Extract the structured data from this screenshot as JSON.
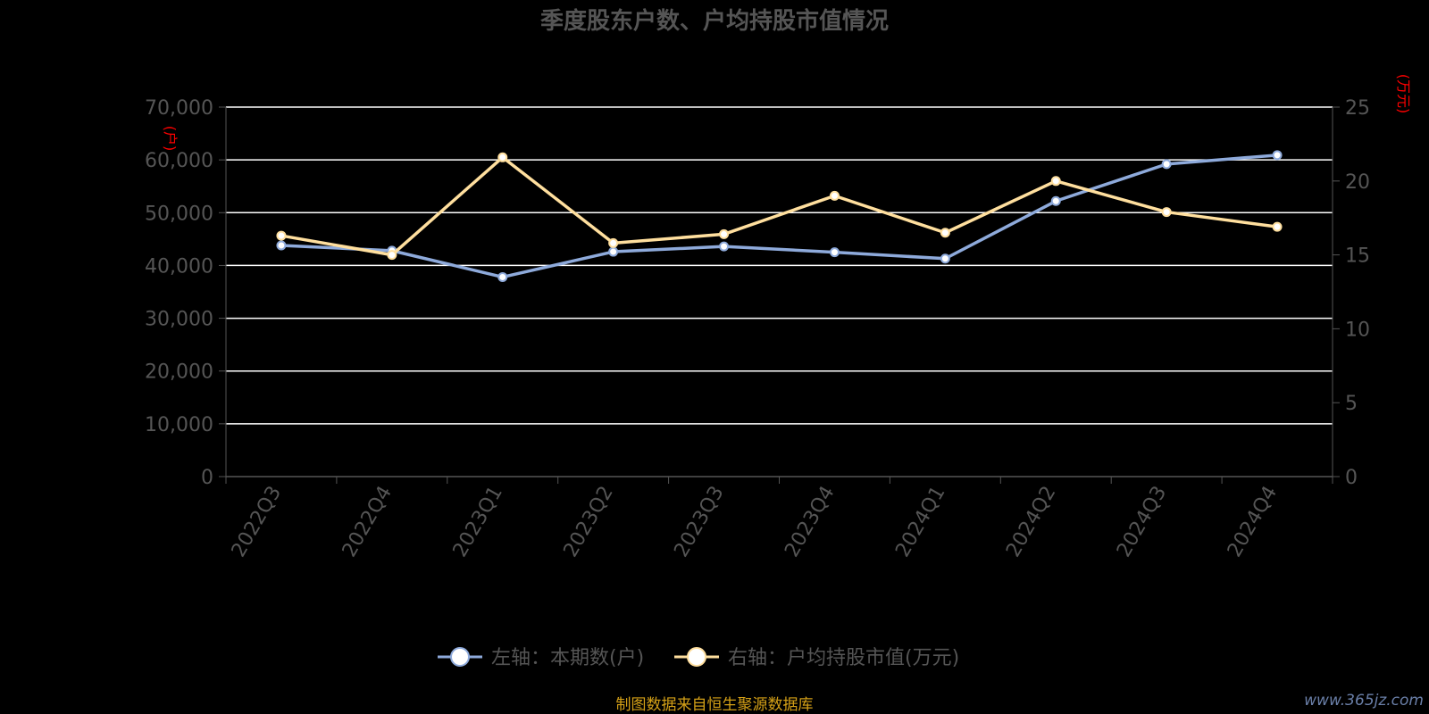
{
  "chart_data": {
    "type": "line",
    "title": "季度股东户数、户均持股市值情况",
    "categories": [
      "2022Q3",
      "2022Q4",
      "2023Q1",
      "2023Q2",
      "2023Q3",
      "2023Q4",
      "2024Q1",
      "2024Q2",
      "2024Q3",
      "2024Q4"
    ],
    "left_axis": {
      "unit_label": "(户)",
      "ylim": [
        0,
        70000
      ],
      "ticks": [
        "0",
        "10,000",
        "20,000",
        "30,000",
        "40,000",
        "50,000",
        "60,000",
        "70,000"
      ]
    },
    "right_axis": {
      "unit_label": "(万元)",
      "ylim": [
        0,
        25
      ],
      "ticks": [
        "0",
        "5",
        "10",
        "15",
        "20",
        "25"
      ]
    },
    "series": [
      {
        "name": "左轴：本期数(户)",
        "axis": "left",
        "color": "#8eaadb",
        "values": [
          43800,
          42800,
          37800,
          42600,
          43600,
          42500,
          41300,
          52200,
          59200,
          60900
        ]
      },
      {
        "name": "右轴：户均持股市值(万元)",
        "axis": "right",
        "color": "#ffdf9e",
        "values": [
          16.3,
          15.0,
          21.6,
          15.8,
          16.4,
          19.0,
          16.5,
          20.0,
          17.9,
          16.9
        ]
      }
    ],
    "grid": true,
    "legend_position": "bottom"
  },
  "footer": {
    "source": "制图数据来自恒生聚源数据库",
    "watermark": "www.365jz.com"
  },
  "colors": {
    "background": "#000000",
    "axis_text": "#555555",
    "grid": "#ffffff",
    "unit_label": "#ff0000",
    "source_text": "#d4a017"
  }
}
